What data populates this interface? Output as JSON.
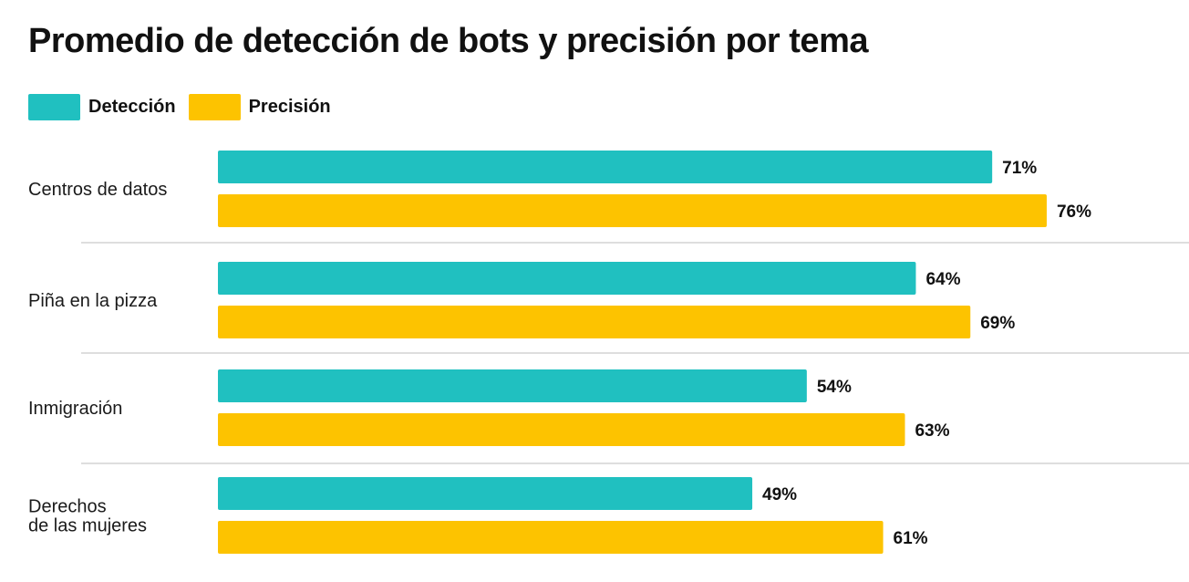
{
  "colors": {
    "deteccion": "#20c0c0",
    "precision": "#fdc300",
    "divider": "#d4d4d4"
  },
  "chart_data": {
    "type": "bar",
    "orientation": "horizontal",
    "title": "Promedio de detección de bots y precisión por tema",
    "categories": [
      [
        "Centros de datos"
      ],
      [
        "Piña en la pizza"
      ],
      [
        "Inmigración"
      ],
      [
        "Derechos",
        "de las mujeres"
      ]
    ],
    "series": [
      {
        "name": "Detección",
        "values": [
          71,
          64,
          54,
          49
        ]
      },
      {
        "name": "Precisión",
        "values": [
          76,
          69,
          63,
          61
        ]
      }
    ],
    "value_labels": [
      [
        "71%",
        "76%"
      ],
      [
        "64%",
        "69%"
      ],
      [
        "54%",
        "63%"
      ],
      [
        "49%",
        "61%"
      ]
    ],
    "xlim": [
      0,
      100
    ],
    "legend_position": "top-left",
    "grid": false
  }
}
